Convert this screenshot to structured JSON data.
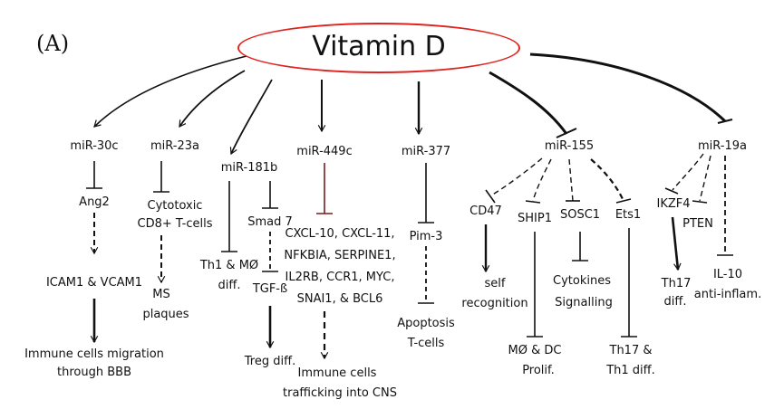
{
  "panel_label": "(A)",
  "hub": "Vitamin D",
  "colors": {
    "hub_border": "#e0231e",
    "line": "#111111",
    "inhibit_line": "#7a1c1c"
  },
  "nodes": {
    "mir30c": "miR-30c",
    "ang2": "Ang2",
    "icam": "ICAM1 & VCAM1",
    "migration_1": "Immune cells migration",
    "migration_2": "through BBB",
    "mir23a": "miR-23a",
    "cytotoxic_1": "Cytotoxic",
    "cytotoxic_2": "CD8+ T-cells",
    "ms_1": "MS",
    "ms_2": "plaques",
    "mir181b": "miR-181b",
    "th1mo_1": "Th1 & MØ",
    "th1mo_2": "diff.",
    "smad7": "Smad 7",
    "tgfb": "TGF-ß",
    "treg": "Treg diff.",
    "mir449c": "miR-449c",
    "cxcl_1": "CXCL-10, CXCL-11,",
    "cxcl_2": "NFKBIA, SERPINE1,",
    "cxcl_3": "IL2RB, CCR1, MYC,",
    "cxcl_4": "SNAI1, & BCL6",
    "trafficking_1": "Immune cells",
    "trafficking_2": "trafficking into CNS",
    "mir377": "miR-377",
    "pim3": "Pim-3",
    "apoptosis_1": "Apoptosis",
    "apoptosis_2": "T-cells",
    "mir155": "miR-155",
    "cd47": "CD47",
    "self_1": "self",
    "self_2": "recognition",
    "ship1": "SHIP1",
    "modc_1": "MØ & DC",
    "modc_2": "Prolif.",
    "sosc1": "SOSC1",
    "cytokines_1": "Cytokines",
    "cytokines_2": "Signalling",
    "ets1": "Ets1",
    "th17th1_1": "Th17 &",
    "th17th1_2": "Th1 diff.",
    "mir19a": "miR-19a",
    "ikzf4": "IKZF4",
    "pten": "PTEN",
    "th17_1": "Th17",
    "th17_2": "diff.",
    "il10_1": "IL-10",
    "il10_2": "anti-inflam."
  }
}
